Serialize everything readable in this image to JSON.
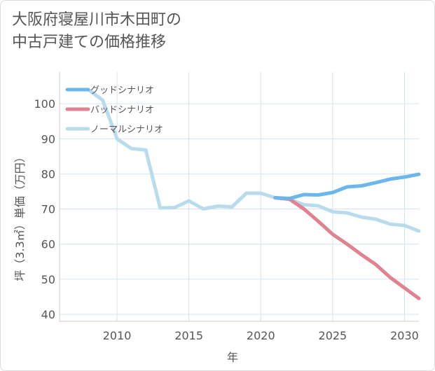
{
  "chart_data": {
    "type": "line",
    "title_lines": [
      "大阪府寝屋川市木田町の",
      "中古戸建ての価格推移"
    ],
    "xlabel": "年",
    "ylabel": "坪（3.3㎡）単価（万円）",
    "xlim": [
      2006,
      2031
    ],
    "ylim": [
      38,
      109
    ],
    "x_ticks": [
      2010,
      2015,
      2020,
      2025,
      2030
    ],
    "y_ticks": [
      40,
      50,
      60,
      70,
      80,
      90,
      100
    ],
    "grid": true,
    "legend_position": "top-left",
    "series": [
      {
        "name": "グッドシナリオ",
        "color": "#6bb6ea",
        "x": [
          2021,
          2022,
          2023,
          2024,
          2025,
          2026,
          2027,
          2028,
          2029,
          2030,
          2031
        ],
        "y": [
          73.2,
          73.0,
          74.1,
          74.0,
          74.7,
          76.3,
          76.6,
          77.5,
          78.5,
          79.1,
          79.9
        ]
      },
      {
        "name": "バッドシナリオ",
        "color": "#e0828f",
        "x": [
          2021,
          2022,
          2023,
          2024,
          2025,
          2026,
          2027,
          2028,
          2029,
          2030,
          2031
        ],
        "y": [
          73.2,
          72.8,
          70.0,
          66.5,
          62.8,
          60.0,
          57.0,
          54.2,
          50.5,
          47.5,
          44.5
        ]
      },
      {
        "name": "ノーマルシナリオ",
        "color": "#b9dcec",
        "x": [
          2008,
          2009,
          2010,
          2011,
          2012,
          2013,
          2014,
          2015,
          2016,
          2017,
          2018,
          2019,
          2020,
          2021,
          2022,
          2023,
          2024,
          2025,
          2026,
          2027,
          2028,
          2029,
          2030,
          2031
        ],
        "y": [
          104,
          101,
          90,
          87.2,
          86.8,
          70.3,
          70.4,
          72.3,
          70.0,
          70.8,
          70.6,
          74.5,
          74.5,
          73.2,
          72.8,
          71.2,
          70.9,
          69.2,
          68.9,
          67.7,
          67.1,
          65.7,
          65.3,
          63.7
        ]
      }
    ]
  }
}
